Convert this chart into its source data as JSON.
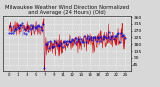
{
  "title": "Milwaukee Weather Wind Direction Normalized and Average (24 Hours) (Old)",
  "title_fontsize": 3.8,
  "title_color": "#111111",
  "bg_color": "#d8d8d8",
  "plot_bg_color": "#d8d8d8",
  "ylim": [
    0,
    370
  ],
  "yticks": [
    45,
    90,
    135,
    180,
    225,
    270,
    315,
    360
  ],
  "ytick_fontsize": 3.2,
  "xtick_fontsize": 2.8,
  "grid_color": "#ffffff",
  "line_red_color": "#cc0000",
  "line_blue_color": "#0000cc",
  "num_points": 288,
  "seed": 7
}
